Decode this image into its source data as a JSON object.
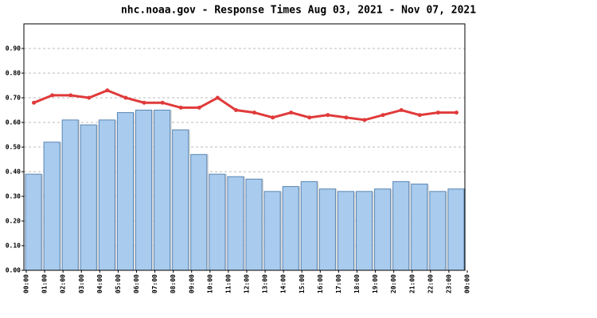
{
  "chart_data": {
    "type": "bar_line",
    "title": "nhc.noaa.gov - Response Times Aug 03, 2021 - Nov 07, 2021",
    "xtick_labels": [
      "00:00",
      "01:00",
      "02:00",
      "03:00",
      "04:00",
      "05:00",
      "06:00",
      "07:00",
      "08:00",
      "09:00",
      "10:00",
      "11:00",
      "12:00",
      "13:00",
      "14:00",
      "15:00",
      "16:00",
      "17:00",
      "18:00",
      "19:00",
      "20:00",
      "21:00",
      "22:00",
      "23:00",
      "00:00"
    ],
    "series": [
      {
        "kind": "bar",
        "color": "#a8cbee",
        "stroke": "#5b86b3",
        "values": [
          0.39,
          0.52,
          0.61,
          0.59,
          0.61,
          0.64,
          0.65,
          0.65,
          0.57,
          0.47,
          0.39,
          0.38,
          0.37,
          0.32,
          0.34,
          0.36,
          0.33,
          0.32,
          0.32,
          0.33,
          0.36,
          0.35,
          0.32,
          0.33
        ]
      },
      {
        "kind": "line",
        "color": "#e03a3a",
        "values": [
          0.68,
          0.71,
          0.71,
          0.7,
          0.73,
          0.7,
          0.68,
          0.68,
          0.66,
          0.66,
          0.7,
          0.65,
          0.64,
          0.62,
          0.64,
          0.62,
          0.63,
          0.62,
          0.61,
          0.63,
          0.65,
          0.63,
          0.64,
          0.64
        ]
      }
    ],
    "ylim": [
      0,
      1.0
    ],
    "yticks": [
      {
        "value": 0,
        "label": "0.00"
      },
      {
        "value": 0.1,
        "label": "0.10"
      },
      {
        "value": 0.2,
        "label": "0.20"
      },
      {
        "value": 0.3,
        "label": "0.30"
      },
      {
        "value": 0.4,
        "label": "0.40"
      },
      {
        "value": 0.5,
        "label": "0.50"
      },
      {
        "value": 0.6,
        "label": "0.60"
      },
      {
        "value": 0.7,
        "label": "0.70"
      },
      {
        "value": 0.8,
        "label": "0.80"
      },
      {
        "value": 0.9,
        "label": "0.90"
      }
    ],
    "grid": true
  }
}
